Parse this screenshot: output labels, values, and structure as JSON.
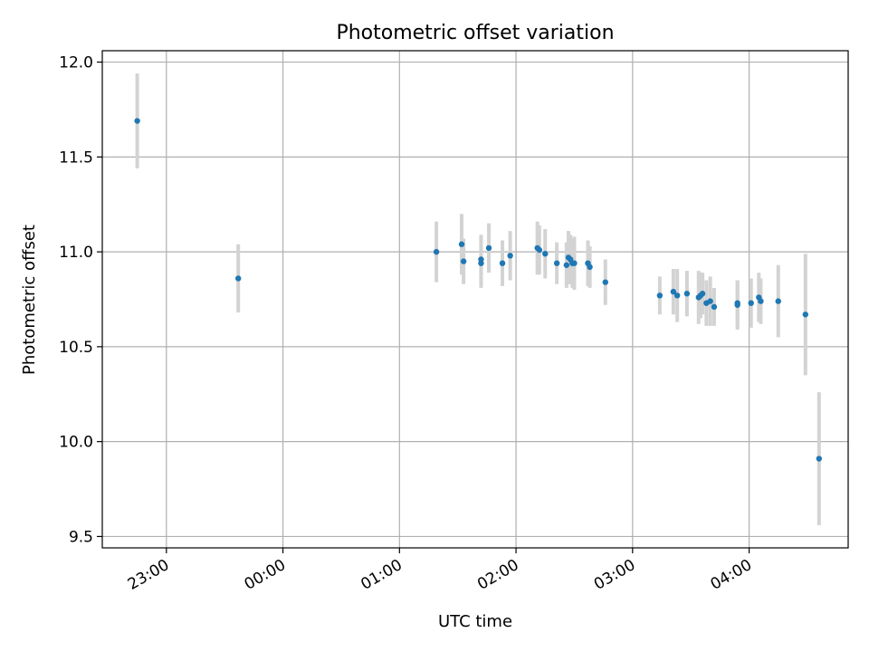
{
  "chart_data": {
    "type": "scatter",
    "title": "Photometric offset variation",
    "xlabel": "UTC time",
    "ylabel": "Photometric offset",
    "xlim": [
      "22:27",
      "04:51"
    ],
    "ylim": [
      9.44,
      12.06
    ],
    "x_ticks": [
      "23:00",
      "00:00",
      "01:00",
      "02:00",
      "03:00",
      "04:00"
    ],
    "y_ticks": [
      "9.5",
      "10.0",
      "10.5",
      "11.0",
      "11.5",
      "12.0"
    ],
    "grid": true,
    "point_color": "#1f77b4",
    "errorbar_color": "#d3d3d3",
    "points": [
      {
        "x": "22:45",
        "y": 11.69,
        "err": 0.25
      },
      {
        "x": "23:37",
        "y": 10.86,
        "err": 0.18
      },
      {
        "x": "01:19",
        "y": 11.0,
        "err": 0.16
      },
      {
        "x": "01:32",
        "y": 11.04,
        "err": 0.16
      },
      {
        "x": "01:33",
        "y": 10.95,
        "err": 0.12
      },
      {
        "x": "01:42",
        "y": 10.94,
        "err": 0.13
      },
      {
        "x": "01:42",
        "y": 10.96,
        "err": 0.13
      },
      {
        "x": "01:46",
        "y": 11.02,
        "err": 0.13
      },
      {
        "x": "01:53",
        "y": 10.94,
        "err": 0.12
      },
      {
        "x": "01:57",
        "y": 10.98,
        "err": 0.13
      },
      {
        "x": "02:11",
        "y": 11.02,
        "err": 0.14
      },
      {
        "x": "02:12",
        "y": 11.01,
        "err": 0.13
      },
      {
        "x": "02:15",
        "y": 10.99,
        "err": 0.13
      },
      {
        "x": "02:21",
        "y": 10.94,
        "err": 0.11
      },
      {
        "x": "02:26",
        "y": 10.93,
        "err": 0.12
      },
      {
        "x": "02:27",
        "y": 10.97,
        "err": 0.14
      },
      {
        "x": "02:28",
        "y": 10.96,
        "err": 0.13
      },
      {
        "x": "02:29",
        "y": 10.94,
        "err": 0.13
      },
      {
        "x": "02:30",
        "y": 10.94,
        "err": 0.14
      },
      {
        "x": "02:37",
        "y": 10.94,
        "err": 0.12
      },
      {
        "x": "02:38",
        "y": 10.92,
        "err": 0.11
      },
      {
        "x": "02:46",
        "y": 10.84,
        "err": 0.12
      },
      {
        "x": "03:14",
        "y": 10.77,
        "err": 0.1
      },
      {
        "x": "03:21",
        "y": 10.79,
        "err": 0.12
      },
      {
        "x": "03:23",
        "y": 10.77,
        "err": 0.14
      },
      {
        "x": "03:28",
        "y": 10.78,
        "err": 0.12
      },
      {
        "x": "03:34",
        "y": 10.76,
        "err": 0.14
      },
      {
        "x": "03:35",
        "y": 10.77,
        "err": 0.12
      },
      {
        "x": "03:36",
        "y": 10.78,
        "err": 0.11
      },
      {
        "x": "03:38",
        "y": 10.73,
        "err": 0.12
      },
      {
        "x": "03:40",
        "y": 10.74,
        "err": 0.13
      },
      {
        "x": "03:42",
        "y": 10.71,
        "err": 0.1
      },
      {
        "x": "03:54",
        "y": 10.72,
        "err": 0.13
      },
      {
        "x": "03:54",
        "y": 10.73,
        "err": 0.12
      },
      {
        "x": "04:01",
        "y": 10.73,
        "err": 0.13
      },
      {
        "x": "04:05",
        "y": 10.76,
        "err": 0.13
      },
      {
        "x": "04:06",
        "y": 10.74,
        "err": 0.12
      },
      {
        "x": "04:15",
        "y": 10.74,
        "err": 0.19
      },
      {
        "x": "04:29",
        "y": 10.67,
        "err": 0.32
      },
      {
        "x": "04:36",
        "y": 9.91,
        "err": 0.35
      }
    ]
  }
}
